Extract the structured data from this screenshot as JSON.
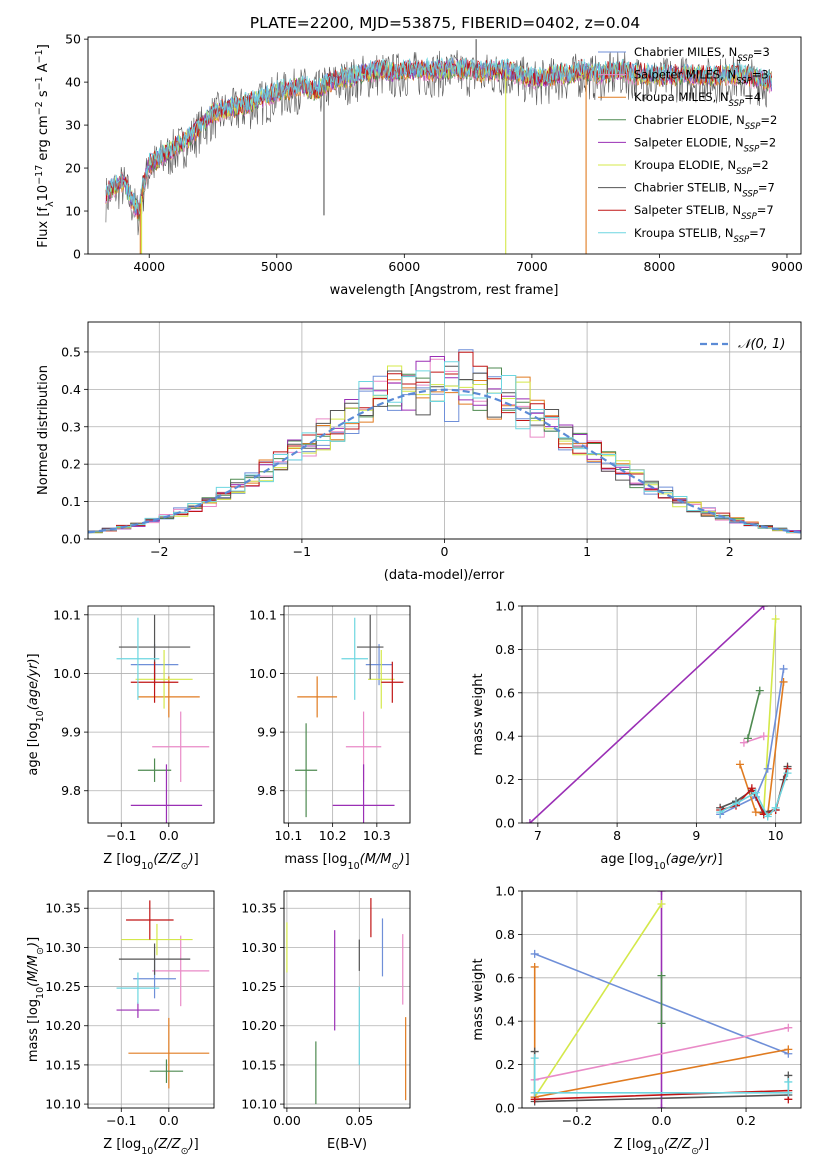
{
  "figure": {
    "title": "PLATE=2200, MJD=53875, FIBERID=0402, z=0.04"
  },
  "palette": {
    "Chabrier MILES": "#6f8fd8",
    "Salpeter MILES": "#e98ac7",
    "Kroupa MILES": "#e07b20",
    "Chabrier ELODIE": "#4e8a50",
    "Salpeter ELODIE": "#9a2fb5",
    "Kroupa ELODIE": "#d4e84a",
    "Chabrier STELIB": "#555555",
    "Salpeter STELIB": "#c01515",
    "Kroupa STELIB": "#6dd6e0",
    "normal": "#5b8bd6"
  },
  "chart_data": [
    {
      "id": "spectrum",
      "type": "line",
      "title": "PLATE=2200, MJD=53875, FIBERID=0402, z=0.04",
      "xlabel": "wavelength [Angstrom, rest frame]",
      "ylabel": "Flux [fλ10⁻¹⁷ erg cm⁻² s⁻¹ A⁻¹]",
      "xlim": [
        3520,
        9110
      ],
      "ylim": [
        0,
        50.5
      ],
      "xticks": [
        4000,
        5000,
        6000,
        7000,
        8000,
        9000
      ],
      "yticks": [
        0,
        10,
        20,
        30,
        40,
        50
      ],
      "grid": false,
      "legend_position": "right",
      "legend": [
        {
          "name": "Chabrier MILES",
          "label": "Chabrier MILES, N",
          "sub": "SSP",
          "suffix": "=3"
        },
        {
          "name": "Salpeter MILES",
          "label": "Salpeter MILES, N",
          "sub": "SSP",
          "suffix": "=3"
        },
        {
          "name": "Kroupa MILES",
          "label": "Kroupa MILES, N",
          "sub": "SSP",
          "suffix": "=4"
        },
        {
          "name": "Chabrier ELODIE",
          "label": "Chabrier ELODIE, N",
          "sub": "SSP",
          "suffix": "=2"
        },
        {
          "name": "Salpeter ELODIE",
          "label": "Salpeter ELODIE, N",
          "sub": "SSP",
          "suffix": "=2"
        },
        {
          "name": "Kroupa ELODIE",
          "label": "Kroupa ELODIE, N",
          "sub": "SSP",
          "suffix": "=2"
        },
        {
          "name": "Chabrier STELIB",
          "label": "Chabrier STELIB, N",
          "sub": "SSP",
          "suffix": "=7"
        },
        {
          "name": "Salpeter STELIB",
          "label": "Salpeter STELIB, N",
          "sub": "SSP",
          "suffix": "=7"
        },
        {
          "name": "Kroupa STELIB",
          "label": "Kroupa STELIB, N",
          "sub": "SSP",
          "suffix": "=7"
        }
      ],
      "continuum": [
        [
          3660,
          14
        ],
        [
          3720,
          16
        ],
        [
          3800,
          17
        ],
        [
          3860,
          13
        ],
        [
          3920,
          10
        ],
        [
          3960,
          17
        ],
        [
          4000,
          21
        ],
        [
          4100,
          23
        ],
        [
          4200,
          25
        ],
        [
          4300,
          27
        ],
        [
          4400,
          30
        ],
        [
          4500,
          33
        ],
        [
          4600,
          34
        ],
        [
          4700,
          34.5
        ],
        [
          4800,
          35.5
        ],
        [
          4900,
          36.5
        ],
        [
          5000,
          38
        ],
        [
          5100,
          38.5
        ],
        [
          5200,
          39.5
        ],
        [
          5300,
          38
        ],
        [
          5400,
          40
        ],
        [
          5500,
          41
        ],
        [
          5600,
          41.5
        ],
        [
          5700,
          42.5
        ],
        [
          5800,
          43
        ],
        [
          5900,
          42.5
        ],
        [
          6000,
          43
        ],
        [
          6100,
          43
        ],
        [
          6200,
          43
        ],
        [
          6300,
          43
        ],
        [
          6400,
          43.5
        ],
        [
          6500,
          43
        ],
        [
          6600,
          42.5
        ],
        [
          6700,
          43
        ],
        [
          6800,
          43
        ],
        [
          6900,
          42
        ],
        [
          7000,
          41
        ],
        [
          7100,
          41
        ],
        [
          7200,
          42
        ],
        [
          7300,
          42
        ],
        [
          7400,
          43
        ],
        [
          7500,
          42
        ],
        [
          7600,
          42.5
        ],
        [
          7700,
          43
        ],
        [
          7800,
          42
        ],
        [
          7900,
          42
        ],
        [
          8000,
          41.5
        ],
        [
          8200,
          42
        ],
        [
          8400,
          41.5
        ],
        [
          8600,
          42
        ],
        [
          8800,
          41
        ],
        [
          8880,
          40
        ]
      ],
      "spikes_down": [
        {
          "x": 3930,
          "y": 0,
          "series": "Kroupa MILES"
        },
        {
          "x": 3940,
          "y": 0,
          "series": "Kroupa ELODIE"
        },
        {
          "x": 5370,
          "y": 9,
          "series": "Chabrier STELIB"
        },
        {
          "x": 6795,
          "y": 0,
          "series": "Kroupa ELODIE"
        },
        {
          "x": 7425,
          "y": 0,
          "series": "Kroupa MILES"
        }
      ],
      "spikes_up": [
        {
          "x": 6563,
          "y": 50,
          "series": "Chabrier STELIB"
        }
      ]
    },
    {
      "id": "residuals",
      "type": "line",
      "xlabel": "(data-model)/error",
      "ylabel": "Normed distribution",
      "xlim": [
        -2.5,
        2.5
      ],
      "ylim": [
        0,
        0.58
      ],
      "xticks": [
        -2,
        -1,
        0,
        1,
        2
      ],
      "yticks": [
        0.0,
        0.1,
        0.2,
        0.3,
        0.4,
        0.5
      ],
      "grid": true,
      "legend_position": "top-right",
      "legend": [
        {
          "name": "normal",
          "label": "𝒩(0, 1)"
        }
      ],
      "bin_width": 0.1,
      "bin_start": -2.5,
      "series_names": [
        "Chabrier MILES",
        "Salpeter MILES",
        "Kroupa MILES",
        "Chabrier ELODIE",
        "Salpeter ELODIE",
        "Kroupa ELODIE",
        "Chabrier STELIB",
        "Salpeter STELIB",
        "Kroupa STELIB"
      ]
    },
    {
      "id": "age_vs_Z",
      "type": "scatter",
      "xlabel": "Z [log₁₀(Z/Z⊙)]",
      "ylabel": "age  [log₁₀(age/yr)]",
      "xlim": [
        -0.17,
        0.095
      ],
      "ylim": [
        9.745,
        10.115
      ],
      "xticks": [
        -0.1,
        0.0
      ],
      "yticks": [
        9.8,
        9.9,
        10.0,
        10.1
      ],
      "grid": true,
      "points": [
        {
          "series": "Chabrier MILES",
          "x": -0.03,
          "y": 10.015,
          "xerr": 0.05,
          "yerr": 0.035
        },
        {
          "series": "Salpeter MILES",
          "x": 0.025,
          "y": 9.875,
          "xerr": 0.06,
          "yerr": 0.06
        },
        {
          "series": "Kroupa MILES",
          "x": 0.0,
          "y": 9.96,
          "xerr": 0.065,
          "yerr": 0.035
        },
        {
          "series": "Chabrier ELODIE",
          "x": -0.03,
          "y": 9.835,
          "xerr": 0.035,
          "yerr": 0.02
        },
        {
          "series": "Salpeter ELODIE",
          "x": -0.005,
          "y": 9.775,
          "xerr": 0.075,
          "yerr": 0.07
        },
        {
          "series": "Kroupa ELODIE",
          "x": -0.01,
          "y": 9.99,
          "xerr": 0.06,
          "yerr": 0.05
        },
        {
          "series": "Chabrier STELIB",
          "x": -0.03,
          "y": 10.045,
          "xerr": 0.075,
          "yerr": 0.055
        },
        {
          "series": "Salpeter STELIB",
          "x": -0.03,
          "y": 9.985,
          "xerr": 0.05,
          "yerr": 0.035
        },
        {
          "series": "Kroupa STELIB",
          "x": -0.065,
          "y": 10.025,
          "xerr": 0.045,
          "yerr": 0.07
        }
      ]
    },
    {
      "id": "age_vs_mass",
      "type": "scatter",
      "xlabel": "mass [log₁₀(M/M⊙)]",
      "ylabel": "",
      "xlim": [
        10.09,
        10.375
      ],
      "ylim": [
        9.745,
        10.115
      ],
      "xticks": [
        10.1,
        10.2,
        10.3
      ],
      "yticks": [
        9.8,
        9.9,
        10.0,
        10.1
      ],
      "grid": true,
      "points": [
        {
          "series": "Chabrier MILES",
          "x": 10.305,
          "y": 10.015,
          "xerr": 0.03,
          "yerr": 0.035
        },
        {
          "series": "Salpeter MILES",
          "x": 10.27,
          "y": 9.875,
          "xerr": 0.04,
          "yerr": 0.06
        },
        {
          "series": "Kroupa MILES",
          "x": 10.165,
          "y": 9.96,
          "xerr": 0.045,
          "yerr": 0.035
        },
        {
          "series": "Chabrier ELODIE",
          "x": 10.14,
          "y": 9.835,
          "xerr": 0.025,
          "yerr": 0.08
        },
        {
          "series": "Salpeter ELODIE",
          "x": 10.27,
          "y": 9.775,
          "xerr": 0.07,
          "yerr": 0.07
        },
        {
          "series": "Kroupa ELODIE",
          "x": 10.31,
          "y": 9.99,
          "xerr": 0.03,
          "yerr": 0.05
        },
        {
          "series": "Chabrier STELIB",
          "x": 10.285,
          "y": 10.045,
          "xerr": 0.03,
          "yerr": 0.055
        },
        {
          "series": "Salpeter STELIB",
          "x": 10.335,
          "y": 9.985,
          "xerr": 0.025,
          "yerr": 0.035
        },
        {
          "series": "Kroupa STELIB",
          "x": 10.25,
          "y": 10.025,
          "xerr": 0.03,
          "yerr": 0.07
        }
      ]
    },
    {
      "id": "weight_vs_age",
      "type": "line",
      "xlabel": "age  [log₁₀(age/yr)]",
      "ylabel": "mass weight",
      "xlim": [
        6.8,
        10.32
      ],
      "ylim": [
        0,
        1.0
      ],
      "xticks": [
        7,
        8,
        9,
        10
      ],
      "yticks": [
        0.0,
        0.2,
        0.4,
        0.6,
        0.8,
        1.0
      ],
      "grid": true,
      "series": [
        {
          "name": "Salpeter ELODIE",
          "x": [
            6.9,
            9.85
          ],
          "y": [
            0.0,
            1.0
          ]
        },
        {
          "name": "Kroupa ELODIE",
          "x": [
            9.85,
            10.0
          ],
          "y": [
            0.05,
            0.94
          ]
        },
        {
          "name": "Chabrier MILES",
          "x": [
            9.3,
            9.75,
            9.9,
            10.1
          ],
          "y": [
            0.04,
            0.12,
            0.25,
            0.71
          ]
        },
        {
          "name": "Kroupa MILES",
          "x": [
            9.55,
            9.75,
            9.9,
            10.1
          ],
          "y": [
            0.27,
            0.05,
            0.04,
            0.65
          ]
        },
        {
          "name": "Salpeter MILES",
          "x": [
            9.6,
            9.85
          ],
          "y": [
            0.37,
            0.4
          ]
        },
        {
          "name": "Chabrier ELODIE",
          "x": [
            9.65,
            9.8
          ],
          "y": [
            0.39,
            0.61
          ]
        },
        {
          "name": "Chabrier STELIB",
          "x": [
            9.3,
            9.5,
            9.7,
            9.85,
            10.0,
            10.1,
            10.15
          ],
          "y": [
            0.07,
            0.1,
            0.15,
            0.05,
            0.06,
            0.2,
            0.26
          ]
        },
        {
          "name": "Salpeter STELIB",
          "x": [
            9.3,
            9.5,
            9.7,
            9.85,
            10.0,
            10.15
          ],
          "y": [
            0.06,
            0.08,
            0.16,
            0.04,
            0.06,
            0.25
          ]
        },
        {
          "name": "Kroupa STELIB",
          "x": [
            9.3,
            9.5,
            9.75,
            9.9,
            10.0,
            10.15
          ],
          "y": [
            0.05,
            0.09,
            0.14,
            0.03,
            0.07,
            0.23
          ]
        }
      ]
    },
    {
      "id": "mass_vs_Z",
      "type": "scatter",
      "xlabel": "Z [log₁₀(Z/Z⊙)]",
      "ylabel": "mass [log₁₀(M/M⊙)]",
      "xlim": [
        -0.17,
        0.095
      ],
      "ylim": [
        10.095,
        10.372
      ],
      "xticks": [
        -0.1,
        0.0
      ],
      "yticks": [
        10.1,
        10.15,
        10.2,
        10.25,
        10.3,
        10.35
      ],
      "grid": true,
      "points": [
        {
          "series": "Chabrier MILES",
          "x": -0.03,
          "y": 10.26,
          "xerr": 0.045,
          "yerr": 0.025
        },
        {
          "series": "Salpeter MILES",
          "x": 0.025,
          "y": 10.27,
          "xerr": 0.06,
          "yerr": 0.045
        },
        {
          "series": "Kroupa MILES",
          "x": 0.0,
          "y": 10.165,
          "xerr": 0.085,
          "yerr": 0.045
        },
        {
          "series": "Chabrier ELODIE",
          "x": -0.005,
          "y": 10.142,
          "xerr": 0.035,
          "yerr": 0.015
        },
        {
          "series": "Salpeter ELODIE",
          "x": -0.065,
          "y": 10.22,
          "xerr": 0.045,
          "yerr": 0.01
        },
        {
          "series": "Kroupa ELODIE",
          "x": -0.025,
          "y": 10.31,
          "xerr": 0.075,
          "yerr": 0.02
        },
        {
          "series": "Chabrier STELIB",
          "x": -0.03,
          "y": 10.285,
          "xerr": 0.075,
          "yerr": 0.02
        },
        {
          "series": "Salpeter STELIB",
          "x": -0.04,
          "y": 10.335,
          "xerr": 0.05,
          "yerr": 0.025
        },
        {
          "series": "Kroupa STELIB",
          "x": -0.065,
          "y": 10.248,
          "xerr": 0.045,
          "yerr": 0.02
        }
      ]
    },
    {
      "id": "mass_vs_EBV",
      "type": "scatter",
      "xlabel": "E(B-V)",
      "ylabel": "",
      "xlim": [
        -0.002,
        0.085
      ],
      "ylim": [
        10.095,
        10.372
      ],
      "xticks": [
        0.0,
        0.05
      ],
      "yticks": [
        10.1,
        10.15,
        10.2,
        10.25,
        10.3,
        10.35
      ],
      "grid": true,
      "points": [
        {
          "series": "Chabrier MILES",
          "x": 0.066,
          "y": 10.3,
          "xerr": 0,
          "yerr": 0.037
        },
        {
          "series": "Salpeter MILES",
          "x": 0.08,
          "y": 10.272,
          "xerr": 0,
          "yerr": 0.045
        },
        {
          "series": "Kroupa MILES",
          "x": 0.082,
          "y": 10.158,
          "xerr": 0,
          "yerr": 0.053
        },
        {
          "series": "Chabrier ELODIE",
          "x": 0.02,
          "y": 10.14,
          "xerr": 0,
          "yerr": 0.04
        },
        {
          "series": "Salpeter ELODIE",
          "x": 0.033,
          "y": 10.258,
          "xerr": 0,
          "yerr": 0.064
        },
        {
          "series": "Kroupa ELODIE",
          "x": 0.0,
          "y": 10.3,
          "xerr": 0,
          "yerr": 0.032
        },
        {
          "series": "Chabrier STELIB",
          "x": 0.05,
          "y": 10.29,
          "xerr": 0,
          "yerr": 0.02
        },
        {
          "series": "Salpeter STELIB",
          "x": 0.058,
          "y": 10.338,
          "xerr": 0,
          "yerr": 0.025
        },
        {
          "series": "Kroupa STELIB",
          "x": 0.05,
          "y": 10.2,
          "xerr": 0,
          "yerr": 0.05
        }
      ]
    },
    {
      "id": "weight_vs_Z",
      "type": "line",
      "xlabel": "Z [log₁₀(Z/Z⊙)]",
      "ylabel": "mass weight",
      "xlim": [
        -0.33,
        0.33
      ],
      "ylim": [
        0,
        1.0
      ],
      "xticks": [
        -0.2,
        0.0,
        0.2
      ],
      "yticks": [
        0.0,
        0.2,
        0.4,
        0.6,
        0.8,
        1.0
      ],
      "grid": true,
      "series": [
        {
          "name": "Salpeter ELODIE",
          "x": [
            0.0,
            0.0
          ],
          "y": [
            0.0,
            1.0
          ]
        },
        {
          "name": "Kroupa ELODIE",
          "x": [
            -0.3,
            0.0
          ],
          "y": [
            0.05,
            0.94
          ]
        },
        {
          "name": "Chabrier MILES",
          "x": [
            -0.3,
            0.3
          ],
          "y": [
            0.71,
            0.25
          ]
        },
        {
          "name": "Salpeter MILES",
          "x": [
            -0.3,
            0.3
          ],
          "y": [
            0.13,
            0.37
          ]
        },
        {
          "name": "Kroupa MILES",
          "x": [
            -0.3,
            -0.3,
            0.3
          ],
          "y": [
            0.65,
            0.05,
            0.27
          ]
        },
        {
          "name": "Chabrier ELODIE",
          "x": [
            0.0,
            0.0
          ],
          "y": [
            0.39,
            0.61
          ]
        },
        {
          "name": "Chabrier STELIB",
          "x": [
            -0.3,
            -0.3,
            0.3,
            0.3
          ],
          "y": [
            0.26,
            0.03,
            0.06,
            0.15
          ]
        },
        {
          "name": "Salpeter STELIB",
          "x": [
            -0.3,
            0.3,
            0.3
          ],
          "y": [
            0.04,
            0.08,
            0.04
          ]
        },
        {
          "name": "Kroupa STELIB",
          "x": [
            -0.3,
            -0.3,
            0.3,
            0.3
          ],
          "y": [
            0.23,
            0.07,
            0.07,
            0.12
          ]
        }
      ]
    }
  ]
}
